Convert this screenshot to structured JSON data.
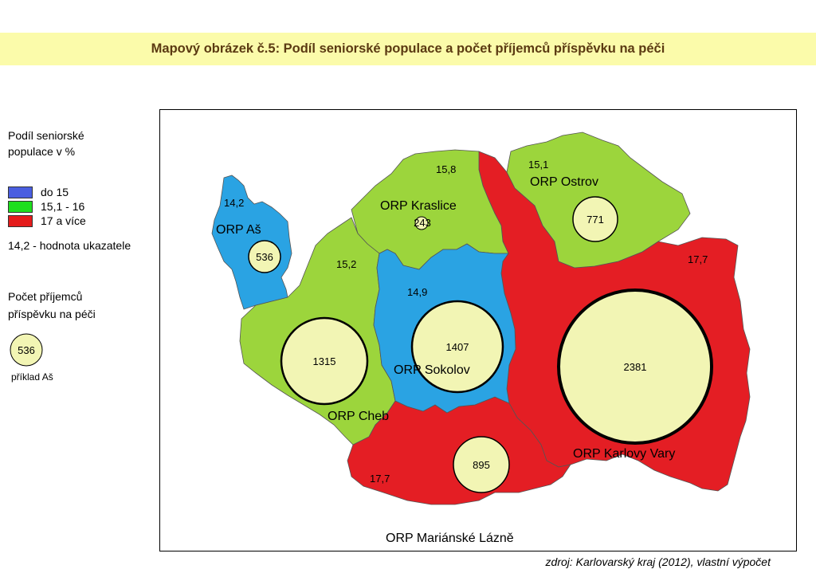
{
  "title": "Mapový obrázek č.5: Podíl seniorské populace a počet příjemců příspěvku na péči",
  "legend": {
    "share_title_line1": "Podíl seniorské",
    "share_title_line2": "populace v %",
    "classes": [
      {
        "label": "do 15",
        "color": "#4a5ee0"
      },
      {
        "label": "15,1 - 16",
        "color": "#1ede1e"
      },
      {
        "label": "17 a více",
        "color": "#e41c1c"
      }
    ],
    "value_note": "14,2 - hodnota ukazatele",
    "count_title_line1": "Počet příjemců",
    "count_title_line2": "příspěvku na péči",
    "example_value": "536",
    "example_label": "příklad Aš"
  },
  "colors": {
    "blue_region": "#2aa3e3",
    "green_region": "#9cd53c",
    "red_region": "#e41e24",
    "circle_fill": "#f2f5b4",
    "title_band": "#fbfbaa"
  },
  "regions": [
    {
      "id": "as",
      "name": "ORP Aš",
      "share": "14,2",
      "recipients": "536",
      "class": "blue"
    },
    {
      "id": "kraslice",
      "name": "ORP Kraslice",
      "share": "15,8",
      "recipients": "243",
      "class": "green"
    },
    {
      "id": "ostrov",
      "name": "ORP Ostrov",
      "share": "15,1",
      "recipients": "771",
      "class": "green"
    },
    {
      "id": "cheb",
      "name": "ORP Cheb",
      "share": "15,2",
      "recipients": "1315",
      "class": "green"
    },
    {
      "id": "sokolov",
      "name": "ORP Sokolov",
      "share": "14,9",
      "recipients": "1407",
      "class": "blue"
    },
    {
      "id": "karlovy_vary",
      "name": "ORP Karlovy Vary",
      "share": "17,7",
      "recipients": "2381",
      "class": "red"
    },
    {
      "id": "marianske_lazne",
      "name": "ORP Mariánské Lázně",
      "share": "17,7",
      "recipients": "895",
      "class": "red"
    }
  ],
  "source": "zdroj: Karlovarský kraj (2012), vlastní výpočet"
}
